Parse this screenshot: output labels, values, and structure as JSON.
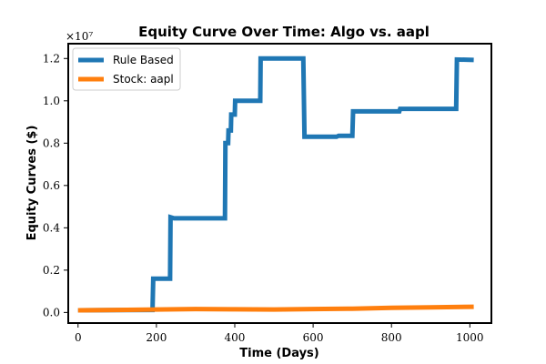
{
  "chart_data": {
    "type": "line",
    "title": "Equity Curve Over Time: Algo vs. aapl",
    "xlabel": "Time (Days)",
    "ylabel": "Equity Curves ($)",
    "y_scale_label": "×10⁷",
    "xlim": [
      -25,
      1055
    ],
    "ylim": [
      -0.05,
      1.27
    ],
    "x_ticks": [
      0,
      200,
      400,
      600,
      800,
      1000
    ],
    "x_tick_labels": [
      "0",
      "200",
      "400",
      "600",
      "800",
      "1000"
    ],
    "y_ticks": [
      0.0,
      0.2,
      0.4,
      0.6,
      0.8,
      1.0,
      1.2
    ],
    "y_tick_labels": [
      "0.0",
      "0.2",
      "0.4",
      "0.6",
      "0.8",
      "1.0",
      "1.2"
    ],
    "grid": false,
    "legend_position": "top-left",
    "series": [
      {
        "name": "Rule Based",
        "color": "#1f77b4",
        "points": [
          [
            0,
            0.01
          ],
          [
            190,
            0.012
          ],
          [
            192,
            0.16
          ],
          [
            235,
            0.16
          ],
          [
            236,
            0.45
          ],
          [
            245,
            0.445
          ],
          [
            375,
            0.445
          ],
          [
            376,
            0.8
          ],
          [
            383,
            0.8
          ],
          [
            384,
            0.86
          ],
          [
            390,
            0.86
          ],
          [
            391,
            0.935
          ],
          [
            400,
            0.935
          ],
          [
            401,
            1.0
          ],
          [
            465,
            1.0
          ],
          [
            466,
            1.2
          ],
          [
            575,
            1.2
          ],
          [
            578,
            0.83
          ],
          [
            660,
            0.83
          ],
          [
            665,
            0.835
          ],
          [
            700,
            0.835
          ],
          [
            702,
            0.95
          ],
          [
            820,
            0.95
          ],
          [
            822,
            0.962
          ],
          [
            965,
            0.962
          ],
          [
            967,
            1.195
          ],
          [
            1010,
            1.193
          ]
        ]
      },
      {
        "name": "Stock: aapl",
        "color": "#ff7f0e",
        "points": [
          [
            0,
            0.01
          ],
          [
            100,
            0.012
          ],
          [
            200,
            0.014
          ],
          [
            300,
            0.016
          ],
          [
            400,
            0.015
          ],
          [
            500,
            0.014
          ],
          [
            600,
            0.016
          ],
          [
            700,
            0.018
          ],
          [
            800,
            0.022
          ],
          [
            900,
            0.024
          ],
          [
            1010,
            0.027
          ]
        ]
      }
    ]
  }
}
